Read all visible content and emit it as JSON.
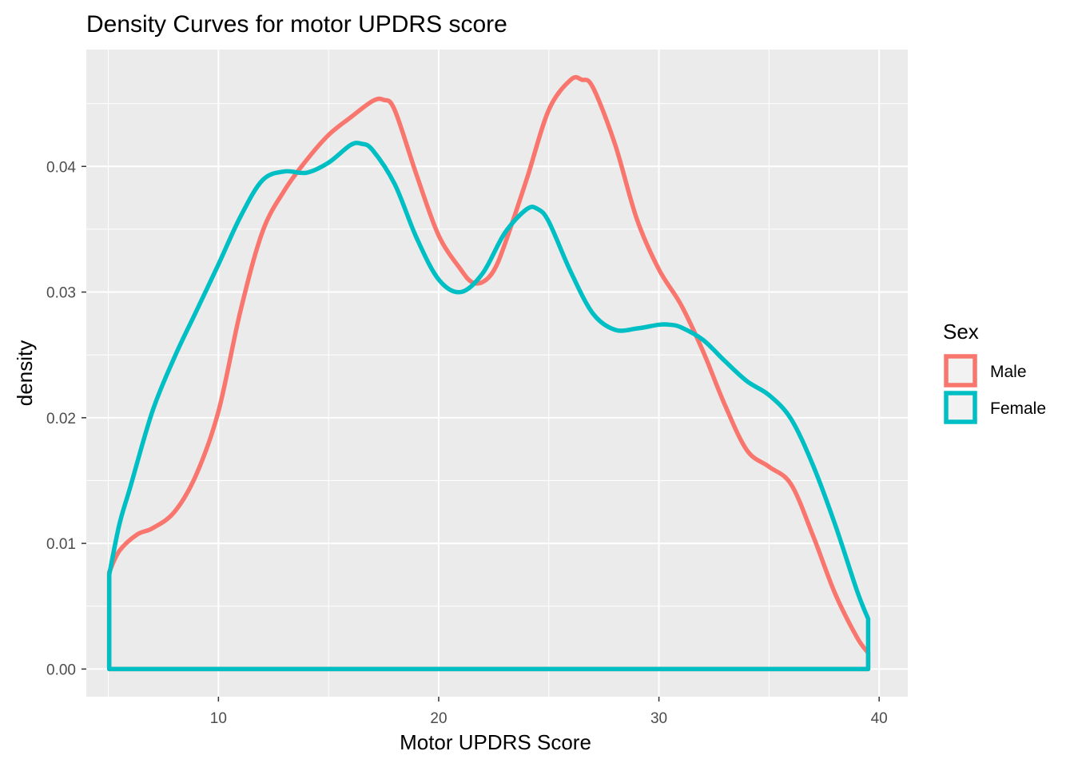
{
  "chart_data": {
    "type": "line",
    "title": "Density Curves for motor UPDRS score",
    "xlabel": "Motor UPDRS Score",
    "ylabel": "density",
    "xlim": [
      4.0,
      41.3
    ],
    "ylim": [
      -0.0022,
      0.0493
    ],
    "x_ticks": [
      10,
      20,
      30,
      40
    ],
    "x_tick_labels": [
      "10",
      "20",
      "30",
      "40"
    ],
    "y_ticks": [
      0.0,
      0.01,
      0.02,
      0.03,
      0.04
    ],
    "y_tick_labels": [
      "0.00",
      "0.01",
      "0.02",
      "0.03",
      "0.04"
    ],
    "grid": true,
    "legend": {
      "title": "Sex",
      "position": "right"
    },
    "series": [
      {
        "name": "Male",
        "color": "#F8766D",
        "x": [
          5.04,
          5.5,
          6.3,
          7.0,
          8.0,
          9.0,
          10.0,
          11.0,
          12.0,
          13.0,
          14.0,
          15.0,
          16.0,
          17.0,
          17.5,
          18.0,
          19.0,
          20.0,
          21.0,
          21.5,
          22.0,
          22.5,
          23.0,
          24.0,
          25.0,
          26.0,
          26.5,
          27.0,
          28.0,
          29.0,
          30.0,
          31.0,
          32.0,
          33.0,
          34.0,
          35.0,
          36.0,
          37.0,
          38.0,
          39.0,
          39.5
        ],
        "values": [
          0.0077,
          0.0094,
          0.0107,
          0.0112,
          0.0125,
          0.0155,
          0.0205,
          0.0285,
          0.0348,
          0.0381,
          0.0405,
          0.0425,
          0.0439,
          0.0452,
          0.0453,
          0.0445,
          0.0393,
          0.0345,
          0.0318,
          0.0308,
          0.0308,
          0.0317,
          0.0338,
          0.039,
          0.0445,
          0.0469,
          0.0469,
          0.0463,
          0.0418,
          0.0358,
          0.0318,
          0.029,
          0.0253,
          0.021,
          0.0174,
          0.0161,
          0.0147,
          0.0106,
          0.006,
          0.0025,
          0.0013
        ]
      },
      {
        "name": "Female",
        "color": "#00BFC4",
        "x": [
          5.04,
          5.5,
          6.0,
          7.0,
          8.0,
          9.0,
          10.0,
          11.0,
          12.0,
          13.0,
          14.0,
          15.0,
          16.0,
          16.5,
          17.0,
          18.0,
          19.0,
          20.0,
          21.0,
          22.0,
          23.0,
          24.0,
          24.5,
          25.0,
          26.0,
          27.0,
          28.0,
          29.0,
          30.0,
          30.5,
          31.0,
          32.0,
          33.0,
          34.0,
          35.0,
          36.0,
          37.0,
          38.0,
          39.0,
          39.5
        ],
        "values": [
          0.0075,
          0.0115,
          0.0145,
          0.0205,
          0.0248,
          0.0285,
          0.0322,
          0.036,
          0.0389,
          0.0396,
          0.0395,
          0.0403,
          0.0417,
          0.0418,
          0.0413,
          0.0386,
          0.0343,
          0.031,
          0.03,
          0.0315,
          0.0347,
          0.0366,
          0.0366,
          0.0356,
          0.0316,
          0.0283,
          0.027,
          0.0271,
          0.0274,
          0.0274,
          0.0272,
          0.0262,
          0.0245,
          0.0229,
          0.0218,
          0.0199,
          0.0162,
          0.0115,
          0.0062,
          0.004
        ]
      }
    ]
  }
}
